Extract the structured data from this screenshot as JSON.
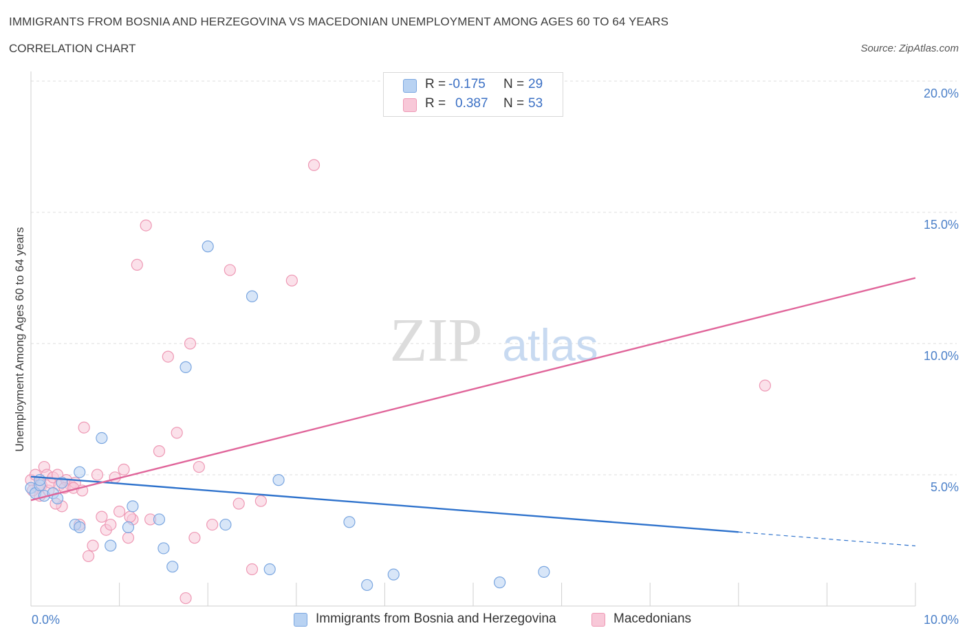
{
  "header": {
    "title": "IMMIGRANTS FROM BOSNIA AND HERZEGOVINA VS MACEDONIAN UNEMPLOYMENT AMONG AGES 60 TO 64 YEARS",
    "subtitle": "CORRELATION CHART",
    "source": "Source: ZipAtlas.com"
  },
  "watermark": {
    "zip": "ZIP",
    "atlas": "atlas"
  },
  "legend": {
    "rows": [
      {
        "r_label": "R =",
        "r_value": "-0.175",
        "n_label": "N =",
        "n_value": "29",
        "color": "#aac8f0",
        "border": "#7aa6e0"
      },
      {
        "r_label": "R =",
        "r_value": "0.387",
        "n_label": "N =",
        "n_value": "53",
        "color": "#f8c4d4",
        "border": "#ee98b4"
      }
    ]
  },
  "bottom_legend": {
    "blue_label": "Immigrants from Bosnia and Herzegovina",
    "pink_label": "Macedonians"
  },
  "chart_data": {
    "type": "scatter",
    "title": "IMMIGRANTS FROM BOSNIA AND HERZEGOVINA VS MACEDONIAN UNEMPLOYMENT AMONG AGES 60 TO 64 YEARS",
    "subtitle": "CORRELATION CHART",
    "xlabel": "",
    "ylabel": "Unemployment Among Ages 60 to 64 years",
    "xlim": [
      0,
      10
    ],
    "ylim": [
      0,
      20
    ],
    "x_ticks": [
      "0.0%",
      "10.0%"
    ],
    "y_ticks": [
      {
        "value": 5,
        "label": "5.0%"
      },
      {
        "value": 10,
        "label": "10.0%"
      },
      {
        "value": 15,
        "label": "15.0%"
      },
      {
        "value": 20,
        "label": "20.0%"
      }
    ],
    "grid": true,
    "colors": {
      "blue": "#7aa6e0",
      "blue_fill": "#b8d2f2",
      "blue_line": "#2e72cc",
      "pink": "#ee98b4",
      "pink_fill": "#f8c8d8",
      "pink_line": "#e0659a"
    },
    "series": [
      {
        "name": "Immigrants from Bosnia and Herzegovina",
        "color": "blue",
        "trend": {
          "x0": 0,
          "y0": 4.93,
          "x1": 8.0,
          "y1": 2.82,
          "dash_x1": 10.0,
          "dash_y1": 2.29
        },
        "points": [
          [
            0.0,
            4.5
          ],
          [
            0.05,
            4.3
          ],
          [
            0.1,
            4.6
          ],
          [
            0.1,
            4.8
          ],
          [
            0.15,
            4.2
          ],
          [
            0.25,
            4.3
          ],
          [
            0.3,
            4.1
          ],
          [
            0.35,
            4.7
          ],
          [
            0.5,
            3.1
          ],
          [
            0.55,
            3.0
          ],
          [
            0.55,
            5.1
          ],
          [
            0.8,
            6.4
          ],
          [
            0.9,
            2.3
          ],
          [
            1.1,
            3.0
          ],
          [
            1.15,
            3.8
          ],
          [
            1.5,
            2.2
          ],
          [
            1.6,
            1.5
          ],
          [
            1.75,
            9.1
          ],
          [
            2.0,
            13.7
          ],
          [
            2.2,
            3.1
          ],
          [
            2.5,
            11.8
          ],
          [
            2.7,
            1.4
          ],
          [
            2.8,
            4.8
          ],
          [
            3.6,
            3.2
          ],
          [
            3.8,
            0.8
          ],
          [
            4.1,
            1.2
          ],
          [
            5.3,
            0.9
          ],
          [
            5.8,
            1.3
          ],
          [
            1.45,
            3.3
          ]
        ]
      },
      {
        "name": "Macedonians",
        "color": "pink",
        "trend": {
          "x0": 0,
          "y0": 4.03,
          "x1": 10.0,
          "y1": 12.5
        },
        "points": [
          [
            0.0,
            4.8
          ],
          [
            0.05,
            5.0
          ],
          [
            0.08,
            4.5
          ],
          [
            0.1,
            4.2
          ],
          [
            0.12,
            4.6
          ],
          [
            0.15,
            5.3
          ],
          [
            0.18,
            5.0
          ],
          [
            0.2,
            4.4
          ],
          [
            0.22,
            4.7
          ],
          [
            0.25,
            4.9
          ],
          [
            0.3,
            5.0
          ],
          [
            0.32,
            4.6
          ],
          [
            0.35,
            3.8
          ],
          [
            0.4,
            4.8
          ],
          [
            0.45,
            4.6
          ],
          [
            0.5,
            4.7
          ],
          [
            0.55,
            3.1
          ],
          [
            0.6,
            6.8
          ],
          [
            0.65,
            1.9
          ],
          [
            0.7,
            2.3
          ],
          [
            0.75,
            5.0
          ],
          [
            0.8,
            3.4
          ],
          [
            0.85,
            2.9
          ],
          [
            0.9,
            3.1
          ],
          [
            0.95,
            4.9
          ],
          [
            1.0,
            3.6
          ],
          [
            1.05,
            5.2
          ],
          [
            1.1,
            2.6
          ],
          [
            1.15,
            3.3
          ],
          [
            1.2,
            13.0
          ],
          [
            1.3,
            14.5
          ],
          [
            1.35,
            3.3
          ],
          [
            1.45,
            5.9
          ],
          [
            1.55,
            9.5
          ],
          [
            1.65,
            6.6
          ],
          [
            1.75,
            0.3
          ],
          [
            1.8,
            10.0
          ],
          [
            1.85,
            2.6
          ],
          [
            1.9,
            5.3
          ],
          [
            2.05,
            3.1
          ],
          [
            2.25,
            12.8
          ],
          [
            2.35,
            3.9
          ],
          [
            2.5,
            1.4
          ],
          [
            2.6,
            4.0
          ],
          [
            2.95,
            12.4
          ],
          [
            3.2,
            16.8
          ],
          [
            8.3,
            8.4
          ],
          [
            0.02,
            4.4
          ],
          [
            0.28,
            3.9
          ],
          [
            0.38,
            4.5
          ],
          [
            0.48,
            4.5
          ],
          [
            0.58,
            4.4
          ],
          [
            1.12,
            3.4
          ]
        ]
      }
    ]
  }
}
